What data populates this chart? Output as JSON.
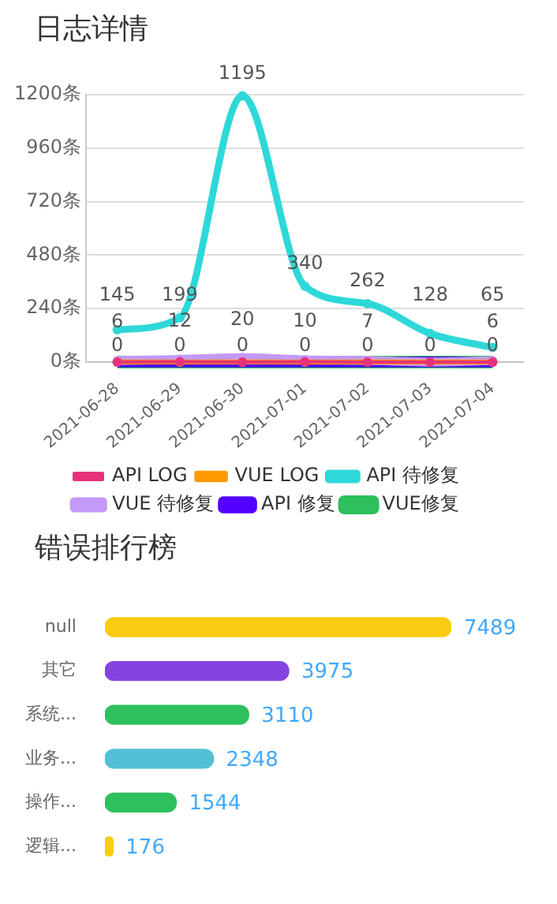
{
  "chart_data": [
    {
      "type": "line",
      "title": "日志详情",
      "categories": [
        "2021-06-28",
        "2021-06-29",
        "2021-06-30",
        "2021-07-01",
        "2021-07-02",
        "2021-07-03",
        "2021-07-04"
      ],
      "series": [
        {
          "name": "API LOG",
          "color": "#e8327c",
          "values": [
            0,
            1,
            0,
            1,
            0,
            0,
            0
          ],
          "value_labels": [
            null,
            null,
            null,
            null,
            null,
            null,
            null
          ]
        },
        {
          "name": "VUE LOG",
          "color": "#ff9900",
          "values": [
            0,
            0,
            0,
            0,
            0,
            0,
            0
          ],
          "value_labels": [
            null,
            null,
            null,
            null,
            null,
            null,
            null
          ]
        },
        {
          "name": "API 待修复",
          "color": "#2ed8d8",
          "values": [
            145,
            199,
            1195,
            340,
            262,
            128,
            65
          ],
          "value_labels": [
            "145",
            "199",
            "1195",
            "340",
            "262",
            "128",
            "65"
          ]
        },
        {
          "name": "VUE 待修复",
          "color": "#c399f9",
          "values": [
            6,
            12,
            20,
            10,
            7,
            0,
            6
          ],
          "value_labels": [
            "6",
            "12",
            "20",
            "10",
            "7",
            null,
            "6"
          ]
        },
        {
          "name": "API 修复",
          "color": "#5200ff",
          "values": [
            0,
            0,
            0,
            0,
            0,
            0,
            0
          ],
          "value_labels": [
            null,
            null,
            null,
            null,
            null,
            null,
            null
          ]
        },
        {
          "name": "VUE修复",
          "color": "#2ec05c",
          "values": [
            0,
            0,
            0,
            0,
            0,
            0,
            0
          ],
          "value_labels": [
            "0",
            "0",
            "0",
            "0",
            "0",
            "0",
            "0"
          ]
        }
      ],
      "ylim": [
        0,
        1200
      ],
      "yticks": [
        {
          "value": 0,
          "label": "0条"
        },
        {
          "value": 240,
          "label": "240条"
        },
        {
          "value": 480,
          "label": "480条"
        },
        {
          "value": 720,
          "label": "720条"
        },
        {
          "value": 960,
          "label": "960条"
        },
        {
          "value": 1200,
          "label": "1200条"
        }
      ],
      "grid": "y",
      "legend": "bottom",
      "marker": "circle",
      "line_style": "solid"
    },
    {
      "type": "bar",
      "orientation": "horizontal",
      "title": "错误排行榜",
      "categories": [
        "null",
        "其它",
        "系统...",
        "业务...",
        "操作...",
        "逻辑..."
      ],
      "values": [
        7489,
        3975,
        3110,
        2348,
        1544,
        176
      ],
      "colors": [
        "#f9cc13",
        "#8544e0",
        "#2ec05c",
        "#52c0d4",
        "#2ec05c",
        "#f9cc13"
      ],
      "data_labels": true,
      "legend": false,
      "grid": false
    }
  ]
}
